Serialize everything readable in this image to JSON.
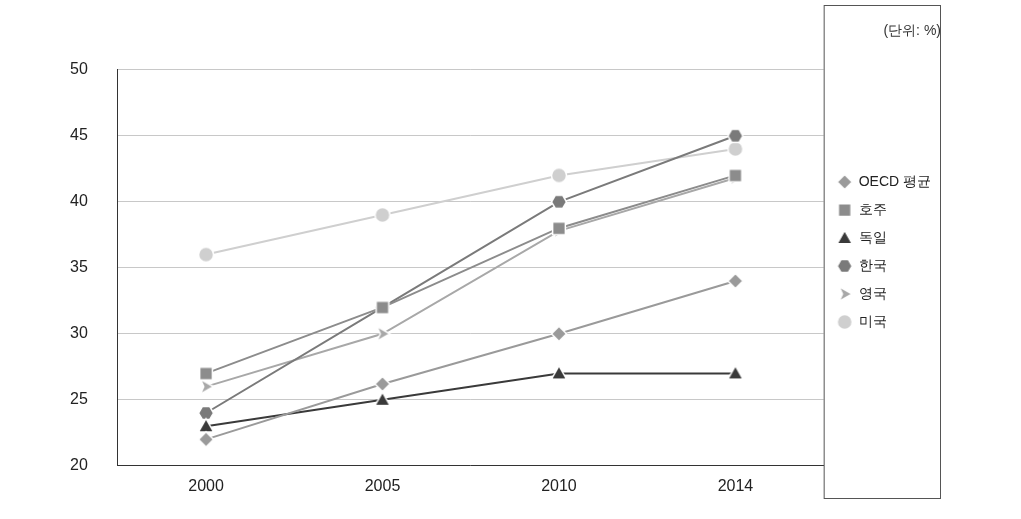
{
  "chart_data": {
    "type": "line",
    "subtitle": "(단위: %)",
    "categories": [
      "2000",
      "2005",
      "2010",
      "2014"
    ],
    "series": [
      {
        "name": "OECD 평균",
        "color": "#9a9a9a",
        "marker": "diamond",
        "values": [
          22,
          26.2,
          30,
          34
        ]
      },
      {
        "name": "호주",
        "color": "#8c8c8c",
        "marker": "square",
        "values": [
          27,
          32,
          38,
          42
        ]
      },
      {
        "name": "독일",
        "color": "#3a3a3a",
        "marker": "triangle",
        "values": [
          23,
          25,
          27,
          27
        ]
      },
      {
        "name": "한국",
        "color": "#7a7a7a",
        "marker": "hexagon",
        "values": [
          24,
          32,
          40,
          45
        ]
      },
      {
        "name": "영국",
        "color": "#a8a8a8",
        "marker": "triangle-right",
        "values": [
          26,
          30,
          37.8,
          41.8
        ]
      },
      {
        "name": "미국",
        "color": "#cfcfcf",
        "marker": "circle",
        "values": [
          36,
          39,
          42,
          44
        ]
      }
    ],
    "ylim": [
      20,
      50
    ],
    "yticks": [
      20,
      25,
      30,
      35,
      40,
      45,
      50
    ],
    "grid": true,
    "legend": "right"
  }
}
